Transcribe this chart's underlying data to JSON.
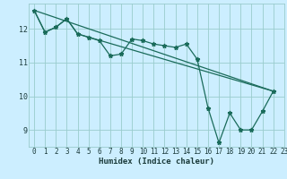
{
  "xlabel": "Humidex (Indice chaleur)",
  "bg_color": "#cceeff",
  "grid_color": "#99cccc",
  "line_color": "#1a6b5a",
  "xlim": [
    -0.5,
    23
  ],
  "ylim": [
    8.5,
    12.75
  ],
  "yticks": [
    9,
    10,
    11,
    12
  ],
  "xticks": [
    0,
    1,
    2,
    3,
    4,
    5,
    6,
    7,
    8,
    9,
    10,
    11,
    12,
    13,
    14,
    15,
    16,
    17,
    18,
    19,
    20,
    21,
    22,
    23
  ],
  "line1_x": [
    0,
    1,
    2,
    3,
    4,
    5,
    6,
    7,
    8,
    9,
    10,
    11,
    12,
    13,
    14,
    15,
    16,
    17,
    18,
    19,
    20,
    21,
    22
  ],
  "line1_y": [
    12.55,
    11.9,
    12.05,
    12.3,
    11.85,
    11.75,
    11.65,
    11.2,
    11.25,
    11.7,
    11.65,
    11.55,
    11.5,
    11.45,
    11.55,
    11.1,
    9.65,
    8.62,
    9.5,
    9.0,
    9.0,
    9.55,
    10.15
  ],
  "line2_x": [
    0,
    1,
    2,
    3,
    4,
    22
  ],
  "line2_y": [
    12.55,
    11.9,
    12.05,
    12.3,
    11.85,
    10.15
  ],
  "line3_x": [
    0,
    22
  ],
  "line3_y": [
    12.55,
    10.15
  ],
  "marker": "*",
  "marker_size": 3.5,
  "font_color": "#1a3a3a",
  "tick_fontsize": 5.5,
  "xlabel_fontsize": 6.5
}
